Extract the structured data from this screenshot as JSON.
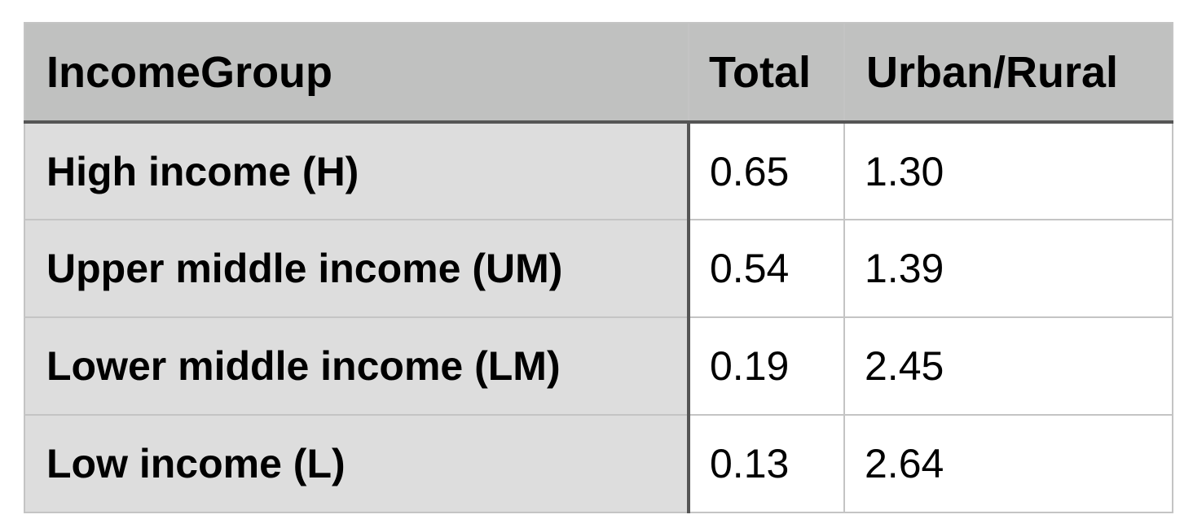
{
  "table": {
    "headers": [
      "IncomeGroup",
      "Total",
      "Urban/Rural"
    ],
    "rows": [
      {
        "group": "High income (H)",
        "total": "0.65",
        "urban_rural": "1.30"
      },
      {
        "group": "Upper middle income (UM)",
        "total": "0.54",
        "urban_rural": "1.39"
      },
      {
        "group": "Lower middle income (LM)",
        "total": "0.19",
        "urban_rural": "2.45"
      },
      {
        "group": "Low income (L)",
        "total": "0.13",
        "urban_rural": "2.64"
      }
    ]
  },
  "colors": {
    "header_bg": "#c0c1c0",
    "label_bg": "#dddddd",
    "value_bg": "#ffffff",
    "grid_line": "#c4c4c4",
    "divider_line": "#555555"
  }
}
